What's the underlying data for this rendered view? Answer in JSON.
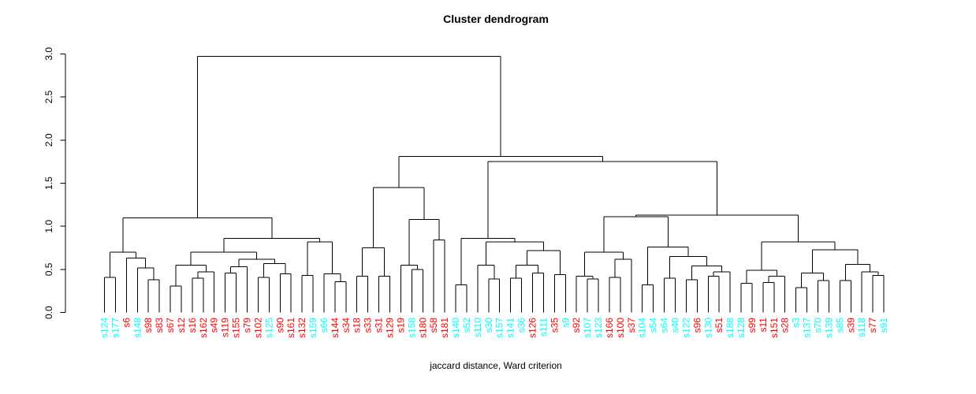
{
  "chart_data": {
    "type": "dendrogram",
    "title": "Cluster dendrogram",
    "xlabel": "jaccard distance, Ward criterion",
    "ylabel": "",
    "ylim": [
      0,
      3
    ],
    "yticks": [
      "0.0",
      "0.5",
      "1.0",
      "1.5",
      "2.0",
      "2.5",
      "3.0"
    ],
    "grid": false,
    "line_color": "#000000",
    "colors": {
      "cyan": "#00FFFF",
      "red": "#FF0000"
    },
    "leaves": [
      {
        "label": "s124",
        "color": "cyan"
      },
      {
        "label": "s177",
        "color": "cyan"
      },
      {
        "label": "s6",
        "color": "red"
      },
      {
        "label": "s148",
        "color": "cyan"
      },
      {
        "label": "s98",
        "color": "red"
      },
      {
        "label": "s83",
        "color": "red"
      },
      {
        "label": "s67",
        "color": "red"
      },
      {
        "label": "s12",
        "color": "red"
      },
      {
        "label": "s16",
        "color": "red"
      },
      {
        "label": "s162",
        "color": "red"
      },
      {
        "label": "s49",
        "color": "red"
      },
      {
        "label": "s119",
        "color": "red"
      },
      {
        "label": "s155",
        "color": "red"
      },
      {
        "label": "s79",
        "color": "red"
      },
      {
        "label": "s102",
        "color": "red"
      },
      {
        "label": "s125",
        "color": "cyan"
      },
      {
        "label": "s90",
        "color": "red"
      },
      {
        "label": "s161",
        "color": "red"
      },
      {
        "label": "s132",
        "color": "red"
      },
      {
        "label": "s159",
        "color": "cyan"
      },
      {
        "label": "s66",
        "color": "cyan"
      },
      {
        "label": "s144",
        "color": "red"
      },
      {
        "label": "s34",
        "color": "red"
      },
      {
        "label": "s18",
        "color": "red"
      },
      {
        "label": "s33",
        "color": "red"
      },
      {
        "label": "s31",
        "color": "red"
      },
      {
        "label": "s129",
        "color": "red"
      },
      {
        "label": "s19",
        "color": "red"
      },
      {
        "label": "s158",
        "color": "cyan"
      },
      {
        "label": "s180",
        "color": "red"
      },
      {
        "label": "s58",
        "color": "red"
      },
      {
        "label": "s181",
        "color": "red"
      },
      {
        "label": "s140",
        "color": "cyan"
      },
      {
        "label": "s52",
        "color": "cyan"
      },
      {
        "label": "s110",
        "color": "cyan"
      },
      {
        "label": "s30",
        "color": "cyan"
      },
      {
        "label": "s157",
        "color": "cyan"
      },
      {
        "label": "s141",
        "color": "cyan"
      },
      {
        "label": "s36",
        "color": "cyan"
      },
      {
        "label": "s126",
        "color": "red"
      },
      {
        "label": "s111",
        "color": "cyan"
      },
      {
        "label": "s35",
        "color": "red"
      },
      {
        "label": "s9",
        "color": "cyan"
      },
      {
        "label": "s92",
        "color": "red"
      },
      {
        "label": "s107",
        "color": "cyan"
      },
      {
        "label": "s123",
        "color": "cyan"
      },
      {
        "label": "s166",
        "color": "red"
      },
      {
        "label": "s100",
        "color": "red"
      },
      {
        "label": "s37",
        "color": "red"
      },
      {
        "label": "s104",
        "color": "cyan"
      },
      {
        "label": "s54",
        "color": "cyan"
      },
      {
        "label": "s64",
        "color": "cyan"
      },
      {
        "label": "s40",
        "color": "cyan"
      },
      {
        "label": "s122",
        "color": "cyan"
      },
      {
        "label": "s96",
        "color": "red"
      },
      {
        "label": "s130",
        "color": "cyan"
      },
      {
        "label": "s51",
        "color": "red"
      },
      {
        "label": "s188",
        "color": "cyan"
      },
      {
        "label": "s128",
        "color": "cyan"
      },
      {
        "label": "s99",
        "color": "red"
      },
      {
        "label": "s11",
        "color": "red"
      },
      {
        "label": "s151",
        "color": "red"
      },
      {
        "label": "s28",
        "color": "red"
      },
      {
        "label": "s3",
        "color": "cyan"
      },
      {
        "label": "s137",
        "color": "cyan"
      },
      {
        "label": "s70",
        "color": "cyan"
      },
      {
        "label": "s139",
        "color": "cyan"
      },
      {
        "label": "s85",
        "color": "cyan"
      },
      {
        "label": "s39",
        "color": "red"
      },
      {
        "label": "s118",
        "color": "cyan"
      },
      {
        "label": "s77",
        "color": "red"
      },
      {
        "label": "s91",
        "color": "cyan"
      }
    ],
    "tree": {
      "h": 2.97,
      "c": [
        {
          "h": 1.1,
          "c": [
            {
              "h": 0.7,
              "c": [
                {
                  "h": 0.41,
                  "c": [
                    "s124",
                    "s177"
                  ]
                },
                {
                  "h": 0.63,
                  "c": [
                    "s6",
                    {
                      "h": 0.52,
                      "c": [
                        "s148",
                        {
                          "h": 0.38,
                          "c": [
                            "s98",
                            "s83"
                          ]
                        }
                      ]
                    }
                  ]
                }
              ]
            },
            {
              "h": 0.86,
              "c": [
                {
                  "h": 0.7,
                  "c": [
                    {
                      "h": 0.55,
                      "c": [
                        {
                          "h": 0.31,
                          "c": [
                            "s67",
                            "s12"
                          ]
                        },
                        {
                          "h": 0.47,
                          "c": [
                            {
                              "h": 0.4,
                              "c": [
                                "s16",
                                "s162"
                              ]
                            },
                            "s49"
                          ]
                        }
                      ]
                    },
                    {
                      "h": 0.62,
                      "c": [
                        {
                          "h": 0.53,
                          "c": [
                            {
                              "h": 0.46,
                              "c": [
                                "s119",
                                "s155"
                              ]
                            },
                            "s79"
                          ]
                        },
                        {
                          "h": 0.57,
                          "c": [
                            {
                              "h": 0.41,
                              "c": [
                                "s102",
                                "s125"
                              ]
                            },
                            {
                              "h": 0.45,
                              "c": [
                                "s90",
                                "s161"
                              ]
                            }
                          ]
                        }
                      ]
                    }
                  ]
                },
                {
                  "h": 0.82,
                  "c": [
                    {
                      "h": 0.43,
                      "c": [
                        "s132",
                        "s159"
                      ]
                    },
                    {
                      "h": 0.45,
                      "c": [
                        "s66",
                        {
                          "h": 0.36,
                          "c": [
                            "s144",
                            "s34"
                          ]
                        }
                      ]
                    }
                  ]
                }
              ]
            }
          ]
        },
        {
          "h": 1.81,
          "c": [
            {
              "h": 1.45,
              "c": [
                {
                  "h": 0.75,
                  "c": [
                    {
                      "h": 0.42,
                      "c": [
                        "s18",
                        "s33"
                      ]
                    },
                    {
                      "h": 0.42,
                      "c": [
                        "s31",
                        "s129"
                      ]
                    }
                  ]
                },
                {
                  "h": 1.08,
                  "c": [
                    {
                      "h": 0.55,
                      "c": [
                        "s19",
                        {
                          "h": 0.5,
                          "c": [
                            "s158",
                            "s180"
                          ]
                        }
                      ]
                    },
                    {
                      "h": 0.84,
                      "c": [
                        "s58",
                        "s181"
                      ]
                    }
                  ]
                }
              ]
            },
            {
              "h": 1.75,
              "c": [
                {
                  "h": 0.86,
                  "c": [
                    {
                      "h": 0.32,
                      "c": [
                        "s140",
                        "s52"
                      ]
                    },
                    {
                      "h": 0.82,
                      "c": [
                        {
                          "h": 0.55,
                          "c": [
                            "s110",
                            {
                              "h": 0.39,
                              "c": [
                                "s30",
                                "s157"
                              ]
                            }
                          ]
                        },
                        {
                          "h": 0.72,
                          "c": [
                            {
                              "h": 0.55,
                              "c": [
                                {
                                  "h": 0.4,
                                  "c": [
                                    "s141",
                                    "s36"
                                  ]
                                },
                                {
                                  "h": 0.46,
                                  "c": [
                                    "s126",
                                    "s111"
                                  ]
                                }
                              ]
                            },
                            {
                              "h": 0.44,
                              "c": [
                                "s35",
                                "s9"
                              ]
                            }
                          ]
                        }
                      ]
                    }
                  ]
                },
                {
                  "h": 1.13,
                  "c": [
                    {
                      "h": 1.11,
                      "c": [
                        {
                          "h": 0.7,
                          "c": [
                            {
                              "h": 0.42,
                              "c": [
                                "s92",
                                {
                                  "h": 0.39,
                                  "c": [
                                    "s107",
                                    "s123"
                                  ]
                                }
                              ]
                            },
                            {
                              "h": 0.62,
                              "c": [
                                {
                                  "h": 0.41,
                                  "c": [
                                    "s166",
                                    "s100"
                                  ]
                                },
                                "s37"
                              ]
                            }
                          ]
                        },
                        {
                          "h": 0.76,
                          "c": [
                            {
                              "h": 0.32,
                              "c": [
                                "s104",
                                "s54"
                              ]
                            },
                            {
                              "h": 0.65,
                              "c": [
                                {
                                  "h": 0.4,
                                  "c": [
                                    "s64",
                                    "s40"
                                  ]
                                },
                                {
                                  "h": 0.54,
                                  "c": [
                                    {
                                      "h": 0.38,
                                      "c": [
                                        "s122",
                                        "s96"
                                      ]
                                    },
                                    {
                                      "h": 0.47,
                                      "c": [
                                        {
                                          "h": 0.42,
                                          "c": [
                                            "s130",
                                            "s51"
                                          ]
                                        },
                                        "s188"
                                      ]
                                    }
                                  ]
                                }
                              ]
                            }
                          ]
                        }
                      ]
                    },
                    {
                      "h": 0.82,
                      "c": [
                        {
                          "h": 0.49,
                          "c": [
                            {
                              "h": 0.34,
                              "c": [
                                "s128",
                                "s99"
                              ]
                            },
                            {
                              "h": 0.42,
                              "c": [
                                {
                                  "h": 0.35,
                                  "c": [
                                    "s11",
                                    "s151"
                                  ]
                                },
                                "s28"
                              ]
                            }
                          ]
                        },
                        {
                          "h": 0.73,
                          "c": [
                            {
                              "h": 0.46,
                              "c": [
                                {
                                  "h": 0.29,
                                  "c": [
                                    "s3",
                                    "s137"
                                  ]
                                },
                                {
                                  "h": 0.37,
                                  "c": [
                                    "s70",
                                    "s139"
                                  ]
                                }
                              ]
                            },
                            {
                              "h": 0.56,
                              "c": [
                                {
                                  "h": 0.37,
                                  "c": [
                                    "s85",
                                    "s39"
                                  ]
                                },
                                {
                                  "h": 0.47,
                                  "c": [
                                    "s118",
                                    {
                                      "h": 0.43,
                                      "c": [
                                        "s77",
                                        "s91"
                                      ]
                                    }
                                  ]
                                }
                              ]
                            }
                          ]
                        }
                      ]
                    }
                  ]
                }
              ]
            }
          ]
        }
      ]
    }
  }
}
